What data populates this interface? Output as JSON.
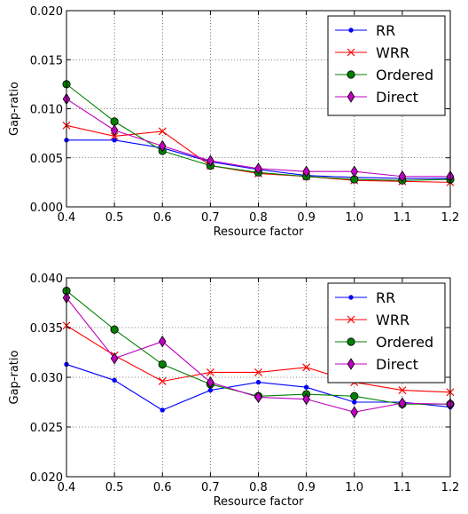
{
  "chart_data": [
    {
      "type": "line",
      "xlabel": "Resource factor",
      "ylabel": "Gap-ratio",
      "x": [
        0.4,
        0.5,
        0.6,
        0.7,
        0.8,
        0.9,
        1.0,
        1.1,
        1.2
      ],
      "xlim": [
        0.4,
        1.2
      ],
      "ylim": [
        0.0,
        0.02
      ],
      "xticks": [
        "0.4",
        "0.5",
        "0.6",
        "0.7",
        "0.8",
        "0.9",
        "1.0",
        "1.1",
        "1.2"
      ],
      "yticks": [
        "0.000",
        "0.005",
        "0.010",
        "0.015",
        "0.020"
      ],
      "grid": true,
      "legend_position": "top-right",
      "series": [
        {
          "name": "RR",
          "color": "#0000ff",
          "marker": "dot",
          "values": [
            0.0068,
            0.0068,
            0.006,
            0.0046,
            0.0038,
            0.0032,
            0.003,
            0.0029,
            0.0029
          ]
        },
        {
          "name": "WRR",
          "color": "#ff0000",
          "marker": "x",
          "values": [
            0.0083,
            0.0072,
            0.0077,
            0.0042,
            0.0034,
            0.0031,
            0.0027,
            0.0026,
            0.0025
          ]
        },
        {
          "name": "Ordered",
          "color": "#008000",
          "marker": "circle",
          "values": [
            0.0125,
            0.0087,
            0.0057,
            0.0042,
            0.0035,
            0.0031,
            0.0028,
            0.0027,
            0.0028
          ]
        },
        {
          "name": "Direct",
          "color": "#bf00bf",
          "marker": "diamond",
          "values": [
            0.011,
            0.0078,
            0.0062,
            0.0047,
            0.0039,
            0.0036,
            0.0036,
            0.0031,
            0.0031
          ]
        }
      ]
    },
    {
      "type": "line",
      "xlabel": "Resource factor",
      "ylabel": "Gap-ratio",
      "x": [
        0.4,
        0.5,
        0.6,
        0.7,
        0.8,
        0.9,
        1.0,
        1.1,
        1.2
      ],
      "xlim": [
        0.4,
        1.2
      ],
      "ylim": [
        0.02,
        0.04
      ],
      "xticks": [
        "0.4",
        "0.5",
        "0.6",
        "0.7",
        "0.8",
        "0.9",
        "1.0",
        "1.1",
        "1.2"
      ],
      "yticks": [
        "0.020",
        "0.025",
        "0.030",
        "0.035",
        "0.040"
      ],
      "grid": true,
      "legend_position": "top-right",
      "series": [
        {
          "name": "RR",
          "color": "#0000ff",
          "marker": "dot",
          "values": [
            0.0313,
            0.0297,
            0.0267,
            0.0287,
            0.0295,
            0.029,
            0.0275,
            0.0275,
            0.027
          ]
        },
        {
          "name": "WRR",
          "color": "#ff0000",
          "marker": "x",
          "values": [
            0.0352,
            0.0322,
            0.0296,
            0.0305,
            0.0305,
            0.031,
            0.0295,
            0.0287,
            0.0285
          ]
        },
        {
          "name": "Ordered",
          "color": "#008000",
          "marker": "circle",
          "values": [
            0.0387,
            0.0348,
            0.0313,
            0.0293,
            0.0281,
            0.0283,
            0.0281,
            0.0273,
            0.0273
          ]
        },
        {
          "name": "Direct",
          "color": "#bf00bf",
          "marker": "diamond",
          "values": [
            0.038,
            0.0319,
            0.0336,
            0.0295,
            0.028,
            0.0278,
            0.0265,
            0.0274,
            0.0273
          ]
        }
      ]
    }
  ]
}
